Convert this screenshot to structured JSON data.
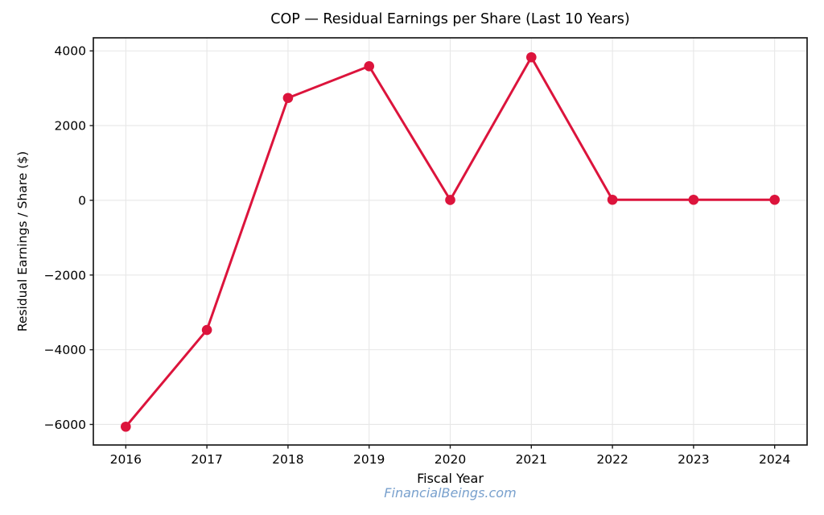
{
  "page": {
    "background": "#ffffff"
  },
  "chart_data": {
    "type": "line",
    "title": "COP — Residual Earnings per Share (Last 10 Years)",
    "xlabel": "Fiscal Year",
    "ylabel": "Residual Earnings / Share ($)",
    "x": [
      2016,
      2017,
      2018,
      2019,
      2020,
      2021,
      2022,
      2023,
      2024
    ],
    "series": [
      {
        "name": "Residual Earnings per Share",
        "values": [
          -6060,
          -3470,
          2740,
          3590,
          10,
          3830,
          15,
          15,
          15
        ]
      }
    ],
    "xtick_labels": [
      "2016",
      "2017",
      "2018",
      "2019",
      "2020",
      "2021",
      "2022",
      "2023",
      "2024"
    ],
    "yticks": [
      4000,
      2000,
      0,
      -2000,
      -4000,
      -6000
    ],
    "ytick_labels": [
      "4000",
      "2000",
      "0",
      "−2000",
      "−4000",
      "−6000"
    ],
    "xlim": [
      2015.6,
      2024.4
    ],
    "ylim": [
      -6550,
      4350
    ],
    "grid": true,
    "legend": "none",
    "line_color": "#DC143C",
    "marker": "circle",
    "grid_color": "#e7e7e7",
    "axis_color": "#1a1a1a",
    "watermark": "FinancialBeings.com",
    "watermark_color": "#78a0cd"
  }
}
